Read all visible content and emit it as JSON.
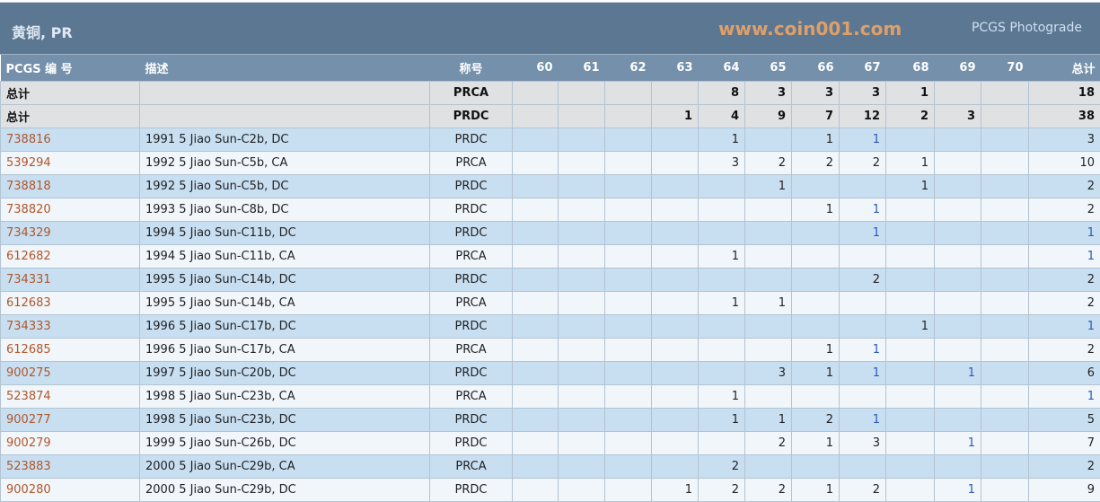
{
  "title": "黄铜, PR",
  "photograde_link": "PCGS Photograde",
  "columns": {
    "pcgs": "PCGS 编 号",
    "desc": "描述",
    "designation": "称号",
    "grades": [
      "60",
      "61",
      "62",
      "63",
      "64",
      "65",
      "66",
      "67",
      "68",
      "69",
      "70"
    ],
    "total": "总计"
  },
  "summary_rows": [
    {
      "label": "总计",
      "designation": "PRCA",
      "cells": [
        "",
        "",
        "",
        "",
        "8",
        "3",
        "3",
        "3",
        "1",
        "",
        ""
      ],
      "total": "18"
    },
    {
      "label": "总计",
      "designation": "PRDC",
      "cells": [
        "",
        "",
        "",
        "1",
        "4",
        "9",
        "7",
        "12",
        "2",
        "3",
        ""
      ],
      "total": "38"
    }
  ],
  "rows": [
    {
      "pcgs": "738816",
      "desc": "1991 5 Jiao Sun-C2b, DC",
      "designation": "PRDC",
      "cells": [
        "",
        "",
        "",
        "",
        "1",
        "",
        "1",
        "1",
        "",
        "",
        ""
      ],
      "total": "3",
      "blue": [
        "67"
      ]
    },
    {
      "pcgs": "539294",
      "desc": "1992 5 Jiao Sun-C5b, CA",
      "designation": "PRCA",
      "cells": [
        "",
        "",
        "",
        "",
        "3",
        "2",
        "2",
        "2",
        "1",
        "",
        ""
      ],
      "total": "10",
      "blue": []
    },
    {
      "pcgs": "738818",
      "desc": "1992 5 Jiao Sun-C5b, DC",
      "designation": "PRDC",
      "cells": [
        "",
        "",
        "",
        "",
        "",
        "1",
        "",
        "",
        "1",
        "",
        ""
      ],
      "total": "2",
      "blue": []
    },
    {
      "pcgs": "738820",
      "desc": "1993 5 Jiao Sun-C8b, DC",
      "designation": "PRDC",
      "cells": [
        "",
        "",
        "",
        "",
        "",
        "",
        "1",
        "1",
        "",
        "",
        ""
      ],
      "total": "2",
      "blue": [
        "67"
      ]
    },
    {
      "pcgs": "734329",
      "desc": "1994 5 Jiao Sun-C11b, DC",
      "designation": "PRDC",
      "cells": [
        "",
        "",
        "",
        "",
        "",
        "",
        "",
        "1",
        "",
        "",
        ""
      ],
      "total": "1",
      "blue": [
        "67",
        "total"
      ]
    },
    {
      "pcgs": "612682",
      "desc": "1994 5 Jiao Sun-C11b, CA",
      "designation": "PRCA",
      "cells": [
        "",
        "",
        "",
        "",
        "1",
        "",
        "",
        "",
        "",
        "",
        ""
      ],
      "total": "1",
      "blue": [
        "total"
      ]
    },
    {
      "pcgs": "734331",
      "desc": "1995 5 Jiao Sun-C14b, DC",
      "designation": "PRDC",
      "cells": [
        "",
        "",
        "",
        "",
        "",
        "",
        "",
        "2",
        "",
        "",
        ""
      ],
      "total": "2",
      "blue": []
    },
    {
      "pcgs": "612683",
      "desc": "1995 5 Jiao Sun-C14b, CA",
      "designation": "PRCA",
      "cells": [
        "",
        "",
        "",
        "",
        "1",
        "1",
        "",
        "",
        "",
        "",
        ""
      ],
      "total": "2",
      "blue": []
    },
    {
      "pcgs": "734333",
      "desc": "1996 5 Jiao Sun-C17b, DC",
      "designation": "PRDC",
      "cells": [
        "",
        "",
        "",
        "",
        "",
        "",
        "",
        "",
        "1",
        "",
        ""
      ],
      "total": "1",
      "blue": [
        "total"
      ]
    },
    {
      "pcgs": "612685",
      "desc": "1996 5 Jiao Sun-C17b, CA",
      "designation": "PRCA",
      "cells": [
        "",
        "",
        "",
        "",
        "",
        "",
        "1",
        "1",
        "",
        "",
        ""
      ],
      "total": "2",
      "blue": [
        "67"
      ]
    },
    {
      "pcgs": "900275",
      "desc": "1997 5 Jiao Sun-C20b, DC",
      "designation": "PRDC",
      "cells": [
        "",
        "",
        "",
        "",
        "",
        "3",
        "1",
        "1",
        "",
        "1",
        ""
      ],
      "total": "6",
      "blue": [
        "67",
        "69"
      ]
    },
    {
      "pcgs": "523874",
      "desc": "1998 5 Jiao Sun-C23b, CA",
      "designation": "PRCA",
      "cells": [
        "",
        "",
        "",
        "",
        "1",
        "",
        "",
        "",
        "",
        "",
        ""
      ],
      "total": "1",
      "blue": [
        "total"
      ]
    },
    {
      "pcgs": "900277",
      "desc": "1998 5 Jiao Sun-C23b, DC",
      "designation": "PRDC",
      "cells": [
        "",
        "",
        "",
        "",
        "1",
        "1",
        "2",
        "1",
        "",
        "",
        ""
      ],
      "total": "5",
      "blue": [
        "67"
      ]
    },
    {
      "pcgs": "900279",
      "desc": "1999 5 Jiao Sun-C26b, DC",
      "designation": "PRDC",
      "cells": [
        "",
        "",
        "",
        "",
        "",
        "2",
        "1",
        "3",
        "",
        "1",
        ""
      ],
      "total": "7",
      "blue": [
        "69"
      ]
    },
    {
      "pcgs": "523883",
      "desc": "2000 5 Jiao Sun-C29b, CA",
      "designation": "PRCA",
      "cells": [
        "",
        "",
        "",
        "",
        "2",
        "",
        "",
        "",
        "",
        "",
        ""
      ],
      "total": "2",
      "blue": []
    },
    {
      "pcgs": "900280",
      "desc": "2000 5 Jiao Sun-C29b, DC",
      "designation": "PRDC",
      "cells": [
        "",
        "",
        "",
        "1",
        "2",
        "2",
        "1",
        "2",
        "",
        "1",
        ""
      ],
      "total": "9",
      "blue": [
        "69"
      ]
    }
  ],
  "watermark": "www.coin001.com",
  "colors": {
    "title_bar": "#5b7791",
    "header_row": "#7490aa",
    "row_odd": "#c8dff2",
    "row_even": "#f1f6fb",
    "summary_row": "#e0e1e3",
    "pcgs_link": "#b0572a",
    "value_link": "#2a5ab8"
  }
}
